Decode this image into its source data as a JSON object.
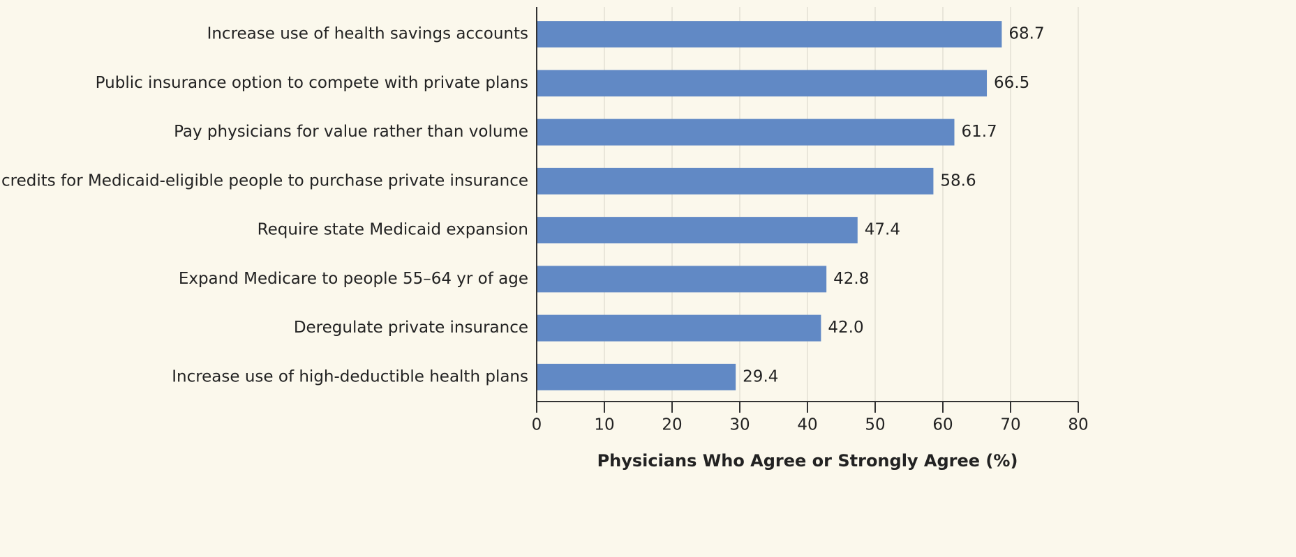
{
  "chart_data": {
    "type": "hbar",
    "categories": [
      "Increase use of health savings accounts",
      "Public insurance option to compete with private plans",
      "Pay physicians for value rather than volume",
      "Tax credits for Medicaid-eligible people to purchase private insurance",
      "Require state Medicaid expansion",
      "Expand Medicare to people 55–64 yr of age",
      "Deregulate private insurance",
      "Increase use of high-deductible health plans"
    ],
    "values": [
      68.7,
      66.5,
      61.7,
      58.6,
      47.4,
      42.8,
      42.0,
      29.4
    ],
    "value_labels": [
      "68.7",
      "66.5",
      "61.7",
      "58.6",
      "47.4",
      "42.8",
      "42.0",
      "29.4"
    ],
    "color": "#6189c5",
    "xlabel": "Physicians Who Agree or Strongly Agree (%)",
    "xlim": [
      0,
      80
    ],
    "xticks": [
      0,
      10,
      20,
      30,
      40,
      50,
      60,
      70,
      80
    ],
    "grid": true
  }
}
